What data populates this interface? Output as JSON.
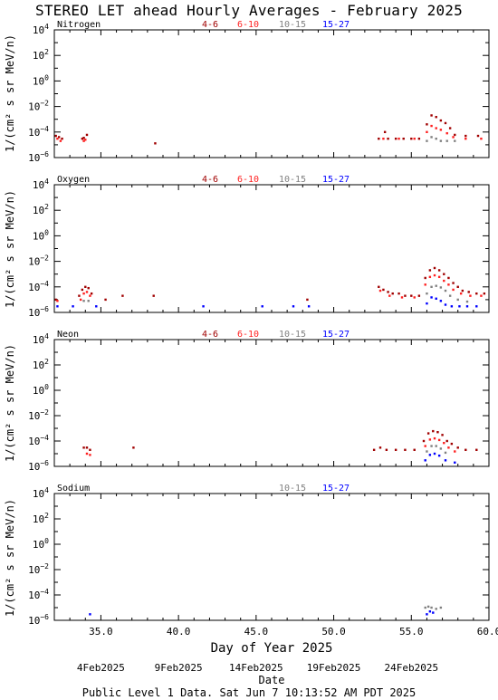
{
  "page": {
    "title": "STEREO LET ahead Hourly Averages - February 2025",
    "xlabel": "Day of Year 2025",
    "date_axis_title": "Date",
    "date_ticks": [
      {
        "label": "4Feb2025",
        "doy": 35
      },
      {
        "label": "9Feb2025",
        "doy": 40
      },
      {
        "label": "14Feb2025",
        "doy": 45
      },
      {
        "label": "19Feb2025",
        "doy": 50
      },
      {
        "label": "24Feb2025",
        "doy": 55
      }
    ],
    "footer": "Public Level 1 Data. Sat Jun  7 10:13:52 AM PDT 2025"
  },
  "chart_data": [
    {
      "type": "scatter",
      "panel": "Nitrogen",
      "ylabel": "1/(cm² s sr MeV/n)",
      "yscale": "log",
      "ylim": [
        1e-06,
        10000.0
      ],
      "xlim": [
        32,
        60
      ],
      "xticks": [
        35.0,
        40.0,
        45.0,
        50.0,
        55.0,
        60.0
      ],
      "show_x_ticklabels": false,
      "legend": [
        "4-6",
        "6-10",
        "10-15",
        "15-27"
      ],
      "series": [
        {
          "name": "4-6",
          "color": "#a00000",
          "points": [
            [
              32.1,
              5e-05
            ],
            [
              32.3,
              4e-05
            ],
            [
              32.5,
              3e-05
            ],
            [
              33.8,
              3e-05
            ],
            [
              33.9,
              3.5e-05
            ],
            [
              34.1,
              6e-05
            ],
            [
              38.5,
              1.3e-05
            ],
            [
              52.9,
              3e-05
            ],
            [
              53.3,
              0.0001
            ],
            [
              53.5,
              3e-05
            ],
            [
              54.0,
              3e-05
            ],
            [
              54.5,
              3e-05
            ],
            [
              55.0,
              3e-05
            ],
            [
              55.5,
              3e-05
            ],
            [
              56.0,
              0.0004
            ],
            [
              56.3,
              0.002
            ],
            [
              56.6,
              0.0015
            ],
            [
              56.9,
              0.0008
            ],
            [
              57.2,
              0.0005
            ],
            [
              57.5,
              0.0002
            ],
            [
              57.8,
              6e-05
            ],
            [
              58.5,
              5e-05
            ],
            [
              59.3,
              5e-05
            ]
          ]
        },
        {
          "name": "6-10",
          "color": "#ff2020",
          "points": [
            [
              32.2,
              3e-05
            ],
            [
              32.4,
              2e-05
            ],
            [
              33.9,
              2e-05
            ],
            [
              34.0,
              2.5e-05
            ],
            [
              53.2,
              3e-05
            ],
            [
              54.2,
              3e-05
            ],
            [
              55.2,
              3e-05
            ],
            [
              56.0,
              0.0001
            ],
            [
              56.3,
              0.0003
            ],
            [
              56.6,
              0.0002
            ],
            [
              56.9,
              0.00015
            ],
            [
              57.3,
              8e-05
            ],
            [
              57.7,
              4e-05
            ],
            [
              58.5,
              3e-05
            ],
            [
              59.5,
              3e-05
            ]
          ]
        },
        {
          "name": "10-15",
          "color": "#808080",
          "points": [
            [
              56.0,
              2e-05
            ],
            [
              56.3,
              4e-05
            ],
            [
              56.6,
              3e-05
            ],
            [
              56.9,
              2e-05
            ],
            [
              57.3,
              2e-05
            ],
            [
              57.8,
              2e-05
            ]
          ]
        },
        {
          "name": "15-27",
          "color": "#0000ff",
          "points": []
        }
      ]
    },
    {
      "type": "scatter",
      "panel": "Oxygen",
      "ylabel": "1/(cm² s sr MeV/n)",
      "yscale": "log",
      "ylim": [
        1e-06,
        10000.0
      ],
      "xlim": [
        32,
        60
      ],
      "xticks": [
        35.0,
        40.0,
        45.0,
        50.0,
        55.0,
        60.0
      ],
      "show_x_ticklabels": false,
      "legend": [
        "4-6",
        "6-10",
        "10-15",
        "15-27"
      ],
      "series": [
        {
          "name": "4-6",
          "color": "#a00000",
          "points": [
            [
              32.1,
              1e-05
            ],
            [
              33.6,
              2e-05
            ],
            [
              33.8,
              6e-05
            ],
            [
              34.0,
              0.0001
            ],
            [
              34.2,
              8e-05
            ],
            [
              34.4,
              3e-05
            ],
            [
              35.3,
              1e-05
            ],
            [
              36.4,
              2e-05
            ],
            [
              38.4,
              2e-05
            ],
            [
              48.3,
              1e-05
            ],
            [
              52.9,
              0.0001
            ],
            [
              53.2,
              6e-05
            ],
            [
              53.5,
              4e-05
            ],
            [
              53.8,
              3e-05
            ],
            [
              54.2,
              3e-05
            ],
            [
              54.6,
              2e-05
            ],
            [
              55.0,
              2e-05
            ],
            [
              55.5,
              2e-05
            ],
            [
              55.9,
              0.0005
            ],
            [
              56.2,
              0.002
            ],
            [
              56.5,
              0.003
            ],
            [
              56.8,
              0.002
            ],
            [
              57.1,
              0.001
            ],
            [
              57.4,
              0.0005
            ],
            [
              57.7,
              0.0002
            ],
            [
              58.0,
              0.0001
            ],
            [
              58.3,
              5e-05
            ],
            [
              58.7,
              4e-05
            ],
            [
              59.2,
              3e-05
            ],
            [
              59.7,
              3e-05
            ]
          ]
        },
        {
          "name": "6-10",
          "color": "#ff2020",
          "points": [
            [
              32.2,
              8e-06
            ],
            [
              33.7,
              1e-05
            ],
            [
              33.9,
              3e-05
            ],
            [
              34.1,
              4e-05
            ],
            [
              34.3,
              2e-05
            ],
            [
              53.0,
              5e-05
            ],
            [
              53.6,
              2e-05
            ],
            [
              54.4,
              1.5e-05
            ],
            [
              55.2,
              1.5e-05
            ],
            [
              55.9,
              0.00015
            ],
            [
              56.2,
              0.0006
            ],
            [
              56.5,
              0.0008
            ],
            [
              56.8,
              0.0006
            ],
            [
              57.1,
              0.0003
            ],
            [
              57.4,
              0.00015
            ],
            [
              57.7,
              6e-05
            ],
            [
              58.2,
              3e-05
            ],
            [
              58.8,
              2e-05
            ],
            [
              59.5,
              2e-05
            ]
          ]
        },
        {
          "name": "10-15",
          "color": "#808080",
          "points": [
            [
              33.9,
              8e-06
            ],
            [
              34.2,
              8e-06
            ],
            [
              56.0,
              3e-05
            ],
            [
              56.3,
              0.0001
            ],
            [
              56.6,
              0.00012
            ],
            [
              56.9,
              9e-05
            ],
            [
              57.2,
              5e-05
            ],
            [
              57.5,
              2e-05
            ],
            [
              58.0,
              1e-05
            ],
            [
              58.6,
              7e-06
            ]
          ]
        },
        {
          "name": "15-27",
          "color": "#0000ff",
          "points": [
            [
              32.2,
              3e-06
            ],
            [
              33.2,
              3e-06
            ],
            [
              34.7,
              3e-06
            ],
            [
              41.6,
              3e-06
            ],
            [
              45.4,
              3e-06
            ],
            [
              47.4,
              3e-06
            ],
            [
              48.4,
              3e-06
            ],
            [
              56.0,
              5e-06
            ],
            [
              56.3,
              1.5e-05
            ],
            [
              56.6,
              1.2e-05
            ],
            [
              56.9,
              8e-06
            ],
            [
              57.2,
              4e-06
            ],
            [
              57.6,
              3e-06
            ],
            [
              58.1,
              3e-06
            ],
            [
              58.6,
              3e-06
            ],
            [
              59.2,
              3e-06
            ]
          ]
        }
      ]
    },
    {
      "type": "scatter",
      "panel": "Neon",
      "ylabel": "1/(cm² s sr MeV/n)",
      "yscale": "log",
      "ylim": [
        1e-06,
        10000.0
      ],
      "xlim": [
        32,
        60
      ],
      "xticks": [
        35.0,
        40.0,
        45.0,
        50.0,
        55.0,
        60.0
      ],
      "show_x_ticklabels": false,
      "legend": [
        "4-6",
        "6-10",
        "10-15",
        "15-27"
      ],
      "series": [
        {
          "name": "4-6",
          "color": "#a00000",
          "points": [
            [
              33.9,
              3e-05
            ],
            [
              34.1,
              3e-05
            ],
            [
              34.3,
              2e-05
            ],
            [
              37.1,
              3e-05
            ],
            [
              52.6,
              2e-05
            ],
            [
              53.0,
              3e-05
            ],
            [
              53.4,
              2e-05
            ],
            [
              54.0,
              2e-05
            ],
            [
              54.6,
              2e-05
            ],
            [
              55.2,
              2e-05
            ],
            [
              55.8,
              0.0001
            ],
            [
              56.1,
              0.0004
            ],
            [
              56.4,
              0.0006
            ],
            [
              56.7,
              0.0005
            ],
            [
              57.0,
              0.0003
            ],
            [
              57.3,
              0.0001
            ],
            [
              57.6,
              6e-05
            ],
            [
              58.0,
              3e-05
            ],
            [
              58.5,
              2e-05
            ],
            [
              59.2,
              2e-05
            ]
          ]
        },
        {
          "name": "6-10",
          "color": "#ff2020",
          "points": [
            [
              34.1,
              1e-05
            ],
            [
              34.3,
              8e-06
            ],
            [
              55.9,
              4e-05
            ],
            [
              56.2,
              0.00013
            ],
            [
              56.5,
              0.00016
            ],
            [
              56.8,
              0.00012
            ],
            [
              57.1,
              7e-05
            ],
            [
              57.4,
              3e-05
            ],
            [
              57.8,
              1.5e-05
            ]
          ]
        },
        {
          "name": "10-15",
          "color": "#808080",
          "points": [
            [
              56.0,
              1.5e-05
            ],
            [
              56.3,
              4e-05
            ],
            [
              56.6,
              4e-05
            ],
            [
              56.9,
              2.5e-05
            ],
            [
              57.2,
              1.2e-05
            ]
          ]
        },
        {
          "name": "15-27",
          "color": "#0000ff",
          "points": [
            [
              55.9,
              3e-06
            ],
            [
              56.2,
              8e-06
            ],
            [
              56.5,
              1e-05
            ],
            [
              56.8,
              7e-06
            ],
            [
              57.2,
              3e-06
            ],
            [
              57.8,
              2e-06
            ]
          ]
        }
      ]
    },
    {
      "type": "scatter",
      "panel": "Sodium",
      "ylabel": "1/(cm² s sr MeV/n)",
      "yscale": "log",
      "ylim": [
        1e-06,
        10000.0
      ],
      "xlim": [
        32,
        60
      ],
      "xticks": [
        35.0,
        40.0,
        45.0,
        50.0,
        55.0,
        60.0
      ],
      "show_x_ticklabels": true,
      "legend": [
        "10-15",
        "15-27"
      ],
      "series": [
        {
          "name": "10-15",
          "color": "#808080",
          "points": [
            [
              55.9,
              1e-05
            ],
            [
              56.1,
              1.2e-05
            ],
            [
              56.3,
              1e-05
            ],
            [
              56.6,
              8e-06
            ],
            [
              56.9,
              1e-05
            ]
          ]
        },
        {
          "name": "15-27",
          "color": "#0000ff",
          "points": [
            [
              34.3,
              3e-06
            ],
            [
              56.0,
              3e-06
            ],
            [
              56.2,
              5e-06
            ],
            [
              56.4,
              4e-06
            ]
          ]
        }
      ]
    }
  ]
}
